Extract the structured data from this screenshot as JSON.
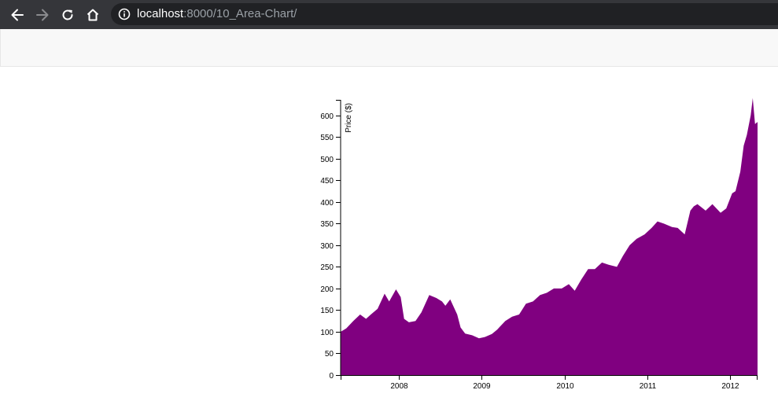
{
  "browser": {
    "url_host": "localhost",
    "url_path": ":8000/10_Area-Chart/",
    "icons": {
      "back": "arrow-left-icon",
      "forward": "arrow-right-icon",
      "reload": "reload-icon",
      "home": "home-icon",
      "info": "info-icon"
    }
  },
  "colors": {
    "area_fill": "#800080",
    "toolbar": "#35363a",
    "address_bar": "#202124",
    "navbar": "#f8f8f8"
  },
  "chart_data": {
    "type": "area",
    "title": "",
    "xlabel": "",
    "ylabel": "Price ($)",
    "xlim": [
      "2007-04-20",
      "2012-05-01"
    ],
    "ylim": [
      0,
      636
    ],
    "y_ticks": [
      0,
      50,
      100,
      150,
      200,
      250,
      300,
      350,
      400,
      450,
      500,
      550,
      600
    ],
    "x_ticks": [
      "2008",
      "2009",
      "2010",
      "2011",
      "2012"
    ],
    "grid": false,
    "legend": "none",
    "series": [
      {
        "x": [
          "2007-04-20",
          "2007-05-15",
          "2007-06-15",
          "2007-07-15",
          "2007-08-10",
          "2007-08-31",
          "2007-09-30",
          "2007-10-31",
          "2007-11-20",
          "2007-12-20",
          "2008-01-10",
          "2008-01-25",
          "2008-02-15",
          "2008-03-15",
          "2008-04-10",
          "2008-05-15",
          "2008-06-15",
          "2008-07-10",
          "2008-07-25",
          "2008-08-15",
          "2008-09-15",
          "2008-09-30",
          "2008-10-20",
          "2008-11-20",
          "2008-12-20",
          "2009-01-15",
          "2009-02-15",
          "2009-03-10",
          "2009-04-15",
          "2009-05-15",
          "2009-06-15",
          "2009-07-15",
          "2009-08-15",
          "2009-09-15",
          "2009-10-15",
          "2009-11-15",
          "2009-12-20",
          "2010-01-20",
          "2010-02-15",
          "2010-03-15",
          "2010-04-15",
          "2010-05-15",
          "2010-06-15",
          "2010-07-15",
          "2010-08-20",
          "2010-09-15",
          "2010-10-15",
          "2010-11-15",
          "2010-12-20",
          "2011-01-20",
          "2011-02-15",
          "2011-03-15",
          "2011-04-20",
          "2011-05-15",
          "2011-06-15",
          "2011-07-10",
          "2011-07-25",
          "2011-08-10",
          "2011-09-15",
          "2011-10-15",
          "2011-11-20",
          "2011-12-15",
          "2012-01-10",
          "2012-01-25",
          "2012-02-15",
          "2012-03-01",
          "2012-03-15",
          "2012-04-01",
          "2012-04-10",
          "2012-04-20",
          "2012-05-01"
        ],
        "values": [
          100,
          108,
          125,
          140,
          130,
          140,
          153,
          188,
          170,
          198,
          180,
          130,
          122,
          125,
          145,
          185,
          178,
          170,
          160,
          175,
          140,
          110,
          96,
          92,
          85,
          88,
          95,
          105,
          125,
          135,
          140,
          165,
          170,
          185,
          190,
          200,
          200,
          210,
          195,
          220,
          245,
          245,
          260,
          255,
          250,
          275,
          300,
          315,
          325,
          340,
          355,
          350,
          342,
          340,
          325,
          380,
          390,
          395,
          380,
          395,
          375,
          385,
          420,
          425,
          470,
          530,
          555,
          600,
          640,
          580,
          585
        ]
      }
    ]
  }
}
